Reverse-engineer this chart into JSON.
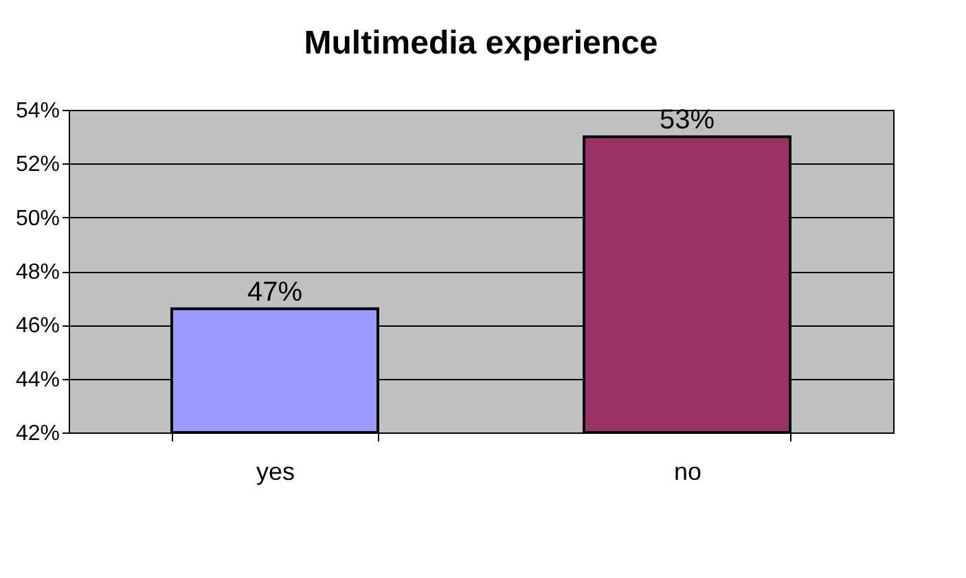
{
  "chart_data": {
    "type": "bar",
    "title": "Multimedia experience",
    "categories": [
      "yes",
      "no"
    ],
    "values": [
      46.6,
      53.0
    ],
    "colors": [
      "#9999ff",
      "#993366"
    ],
    "value_labels": [
      "47%",
      "53%"
    ],
    "ylim": [
      42,
      54
    ],
    "yticks": [
      {
        "value": 42,
        "label": "42%"
      },
      {
        "value": 44,
        "label": "44%"
      },
      {
        "value": 46,
        "label": "46%"
      },
      {
        "value": 48,
        "label": "48%"
      },
      {
        "value": 50,
        "label": "50%"
      },
      {
        "value": 52,
        "label": "52%"
      },
      {
        "value": 54,
        "label": "54%"
      }
    ],
    "grid": "y"
  }
}
